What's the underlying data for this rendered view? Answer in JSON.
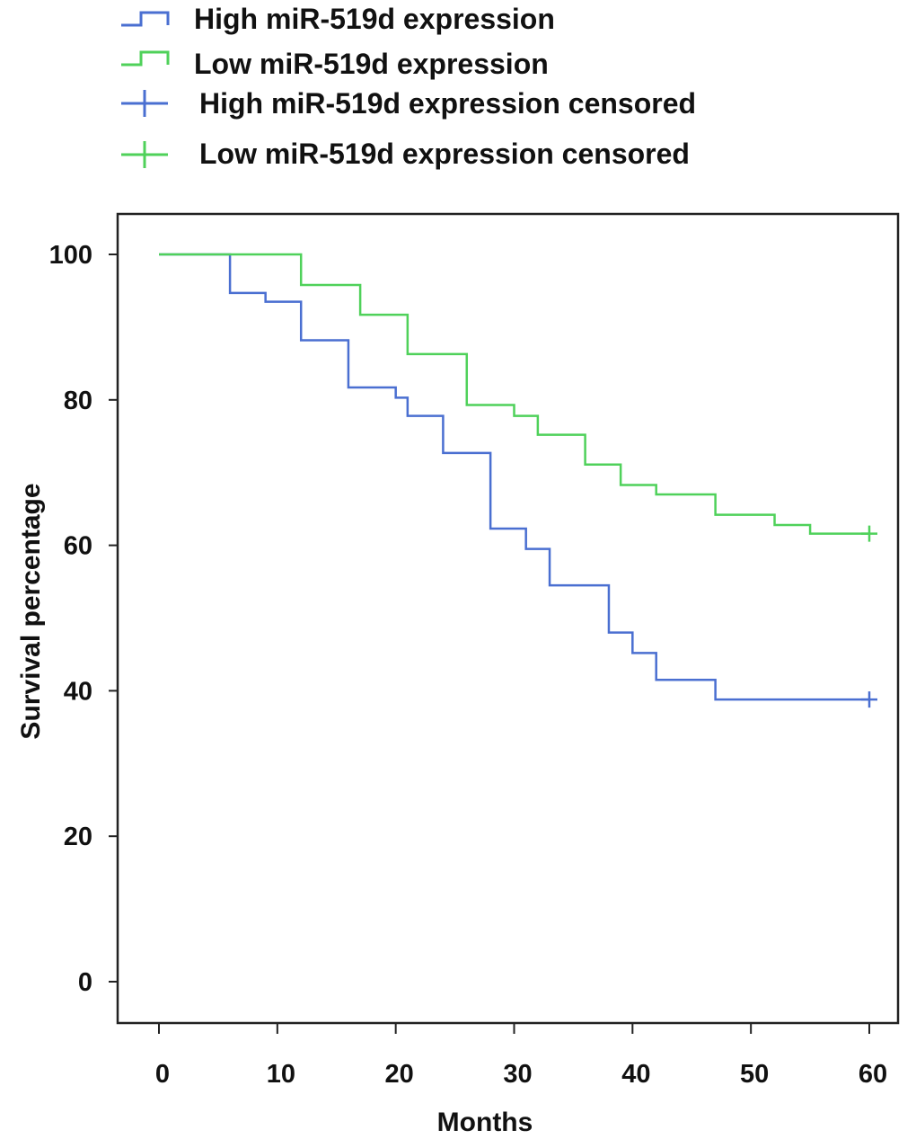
{
  "chart_data": {
    "type": "line",
    "subtype": "kaplan-meier step",
    "xlabel": "Months",
    "ylabel": "Survival percentage",
    "xlim": [
      0,
      60
    ],
    "ylim": [
      0,
      100
    ],
    "x_ticks": [
      "0",
      "10",
      "20",
      "30",
      "40",
      "50",
      "60"
    ],
    "y_ticks": [
      "0",
      "20",
      "40",
      "60",
      "80",
      "100"
    ],
    "grid": false,
    "legend_position": "top-left, above plot",
    "legend": [
      {
        "label": "High miR-519d  expression",
        "marker": "step",
        "color": "#4a6fd1"
      },
      {
        "label": "Low miR-519d  expression",
        "marker": "step",
        "color": "#4fd15a"
      },
      {
        "label": "High miR-519d  expression censored",
        "marker": "plus",
        "color": "#4a6fd1"
      },
      {
        "label": "Low miR-519d  expression censored",
        "marker": "plus",
        "color": "#4fd15a"
      }
    ],
    "series": [
      {
        "name": "High miR-519d  expression",
        "color": "#4a6fd1",
        "x": [
          0,
          6,
          9,
          12,
          16,
          20,
          21,
          24,
          28,
          31,
          33,
          38,
          40,
          42,
          47,
          60
        ],
        "y": [
          100,
          94.7,
          93.5,
          88.2,
          81.7,
          80.3,
          77.8,
          72.7,
          62.3,
          59.5,
          54.5,
          48.0,
          45.2,
          41.5,
          38.8,
          38.8
        ],
        "censored": [
          {
            "x": 60,
            "y": 38.8
          }
        ]
      },
      {
        "name": "Low miR-519d  expression",
        "color": "#4fd15a",
        "x": [
          0,
          12,
          17,
          21,
          26,
          30,
          32,
          36,
          39,
          42,
          47,
          52,
          55,
          60
        ],
        "y": [
          100,
          95.8,
          91.7,
          86.3,
          79.3,
          77.8,
          75.2,
          71.1,
          68.3,
          67.0,
          64.2,
          62.8,
          61.6,
          61.6
        ],
        "censored": [
          {
            "x": 60,
            "y": 61.6
          }
        ]
      }
    ]
  }
}
